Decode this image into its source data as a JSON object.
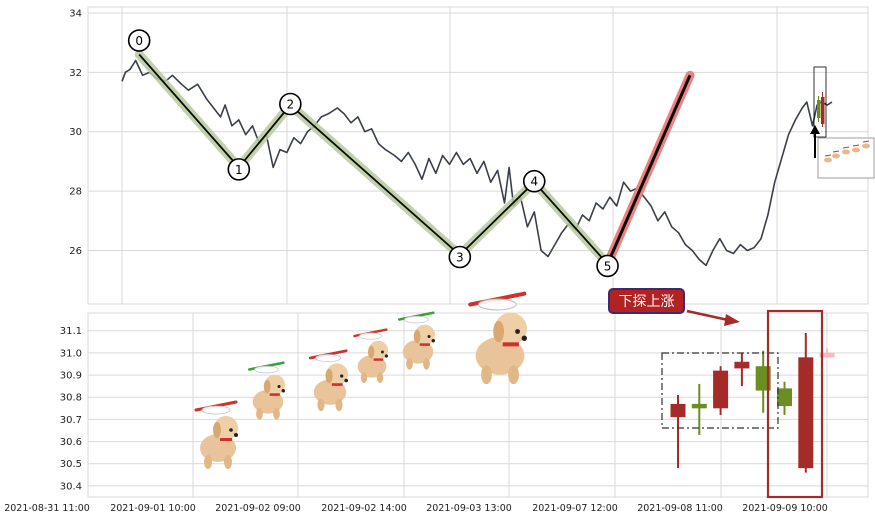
{
  "colors": {
    "grid": "#d9d9d9",
    "price_line": "#3a3f4a",
    "wave_line": "#0a0a0a",
    "wave_halo": "#b7c99a",
    "last_halo": "#f08080",
    "candle_up": "#a52a2a",
    "candle_down": "#6b8e23",
    "annotation_bg": "#b22222",
    "annotation_border": "#3b2a6e",
    "arrow": "#a52a2a"
  },
  "chart_data": [
    {
      "type": "line",
      "panel": "top",
      "ylim": [
        24.2,
        34.2
      ],
      "yticks": [
        26,
        28,
        30,
        32,
        34
      ],
      "grid": true,
      "price_series": [
        [
          0.0,
          31.7
        ],
        [
          0.15,
          32.0
        ],
        [
          0.35,
          32.1
        ],
        [
          0.6,
          32.4
        ],
        [
          0.9,
          31.9
        ],
        [
          1.2,
          32.0
        ],
        [
          1.5,
          31.8
        ],
        [
          1.9,
          31.7
        ],
        [
          2.2,
          31.9
        ],
        [
          2.6,
          31.6
        ],
        [
          2.9,
          31.4
        ],
        [
          3.3,
          31.6
        ],
        [
          3.7,
          31.1
        ],
        [
          4.0,
          30.8
        ],
        [
          4.3,
          30.5
        ],
        [
          4.5,
          30.9
        ],
        [
          4.8,
          30.2
        ],
        [
          5.1,
          30.4
        ],
        [
          5.4,
          29.9
        ],
        [
          5.7,
          30.2
        ],
        [
          6.0,
          29.6
        ],
        [
          6.3,
          29.9
        ],
        [
          6.6,
          28.8
        ],
        [
          6.9,
          29.4
        ],
        [
          7.2,
          29.3
        ],
        [
          7.5,
          29.8
        ],
        [
          7.8,
          29.6
        ],
        [
          8.1,
          30.0
        ],
        [
          8.4,
          30.2
        ],
        [
          8.7,
          30.5
        ],
        [
          9.0,
          30.6
        ],
        [
          9.4,
          30.8
        ],
        [
          9.7,
          30.6
        ],
        [
          10.0,
          30.3
        ],
        [
          10.3,
          30.5
        ],
        [
          10.6,
          30.0
        ],
        [
          10.9,
          30.1
        ],
        [
          11.2,
          29.6
        ],
        [
          11.5,
          29.4
        ],
        [
          11.9,
          29.2
        ],
        [
          12.2,
          29.0
        ],
        [
          12.5,
          29.3
        ],
        [
          12.8,
          28.9
        ],
        [
          13.1,
          28.4
        ],
        [
          13.4,
          29.1
        ],
        [
          13.7,
          28.6
        ],
        [
          14.0,
          29.2
        ],
        [
          14.3,
          28.9
        ],
        [
          14.6,
          29.3
        ],
        [
          14.9,
          28.9
        ],
        [
          15.2,
          29.1
        ],
        [
          15.5,
          28.6
        ],
        [
          15.8,
          29.0
        ],
        [
          16.1,
          28.3
        ],
        [
          16.4,
          28.7
        ],
        [
          16.7,
          27.6
        ],
        [
          16.9,
          28.8
        ],
        [
          17.1,
          27.5
        ],
        [
          17.4,
          27.8
        ],
        [
          17.7,
          26.8
        ],
        [
          18.0,
          27.3
        ],
        [
          18.3,
          26.0
        ],
        [
          18.6,
          25.8
        ],
        [
          18.9,
          26.2
        ],
        [
          19.2,
          26.6
        ],
        [
          19.5,
          26.9
        ],
        [
          19.8,
          26.7
        ],
        [
          20.1,
          27.2
        ],
        [
          20.4,
          27.0
        ],
        [
          20.7,
          27.6
        ],
        [
          21.0,
          27.4
        ],
        [
          21.3,
          27.8
        ],
        [
          21.6,
          27.5
        ],
        [
          21.9,
          28.3
        ],
        [
          22.2,
          28.0
        ],
        [
          22.5,
          28.1
        ],
        [
          22.8,
          27.8
        ],
        [
          23.1,
          27.5
        ],
        [
          23.4,
          27.0
        ],
        [
          23.7,
          27.3
        ],
        [
          24.0,
          26.8
        ],
        [
          24.3,
          26.6
        ],
        [
          24.6,
          26.2
        ],
        [
          24.9,
          26.0
        ],
        [
          25.2,
          25.7
        ],
        [
          25.5,
          25.5
        ],
        [
          25.8,
          26.0
        ],
        [
          26.1,
          26.4
        ],
        [
          26.4,
          26.0
        ],
        [
          26.7,
          25.9
        ],
        [
          27.0,
          26.2
        ],
        [
          27.3,
          26.0
        ],
        [
          27.6,
          26.1
        ],
        [
          27.9,
          26.4
        ],
        [
          28.2,
          27.2
        ],
        [
          28.5,
          28.3
        ],
        [
          28.8,
          29.1
        ],
        [
          29.1,
          29.9
        ],
        [
          29.4,
          30.4
        ],
        [
          29.7,
          30.8
        ],
        [
          29.9,
          31.0
        ],
        [
          30.15,
          30.2
        ],
        [
          30.35,
          30.9
        ],
        [
          30.55,
          31.0
        ],
        [
          30.8,
          30.9
        ],
        [
          31.0,
          31.0
        ]
      ],
      "wave_points": [
        {
          "label": "0",
          "x": 0.75,
          "y": 32.6
        },
        {
          "label": "1",
          "x": 5.1,
          "y": 28.8
        },
        {
          "label": "2",
          "x": 7.35,
          "y": 30.9
        },
        {
          "label": "3",
          "x": 14.75,
          "y": 25.85
        },
        {
          "label": "4",
          "x": 18.0,
          "y": 28.3
        },
        {
          "label": "5",
          "x": 21.2,
          "y": 25.55
        }
      ],
      "last_segment": [
        [
          21.2,
          25.55
        ],
        [
          24.8,
          31.9
        ]
      ]
    },
    {
      "type": "candlestick",
      "panel": "bottom",
      "ylim": [
        30.35,
        31.18
      ],
      "yticks": [
        30.4,
        30.5,
        30.6,
        30.7,
        30.8,
        30.9,
        31.0,
        31.1
      ],
      "grid": true,
      "candles": [
        {
          "open": 30.71,
          "close": 30.77,
          "high": 30.81,
          "low": 30.48
        },
        {
          "open": 30.77,
          "close": 30.75,
          "high": 30.86,
          "low": 30.63
        },
        {
          "open": 30.75,
          "close": 30.92,
          "high": 30.94,
          "low": 30.72
        },
        {
          "open": 30.93,
          "close": 30.96,
          "high": 31.0,
          "low": 30.85
        },
        {
          "open": 30.94,
          "close": 30.83,
          "high": 31.01,
          "low": 30.73
        },
        {
          "open": 30.84,
          "close": 30.76,
          "high": 30.87,
          "low": 30.72
        },
        {
          "open": 30.48,
          "close": 30.98,
          "high": 31.09,
          "low": 30.46
        },
        {
          "open": 30.98,
          "close": 31.0,
          "high": 31.02,
          "low": 30.98
        }
      ],
      "annotation": "下探上涨"
    }
  ],
  "x_axis": {
    "tick_labels": [
      "2021-08-31 11:00",
      "2021-09-01 10:00",
      "2021-09-02 09:00",
      "2021-09-02 14:00",
      "2021-09-03 13:00",
      "2021-09-07 12:00",
      "2021-09-08 11:00",
      "2021-09-09 10:00"
    ]
  }
}
